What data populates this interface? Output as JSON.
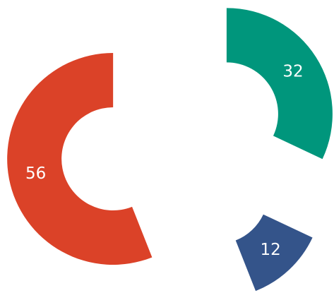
{
  "chart_data": {
    "type": "donut",
    "values": [
      32,
      12,
      56
    ],
    "colors": [
      "#00967c",
      "#34548a",
      "#db4228"
    ]
  }
}
